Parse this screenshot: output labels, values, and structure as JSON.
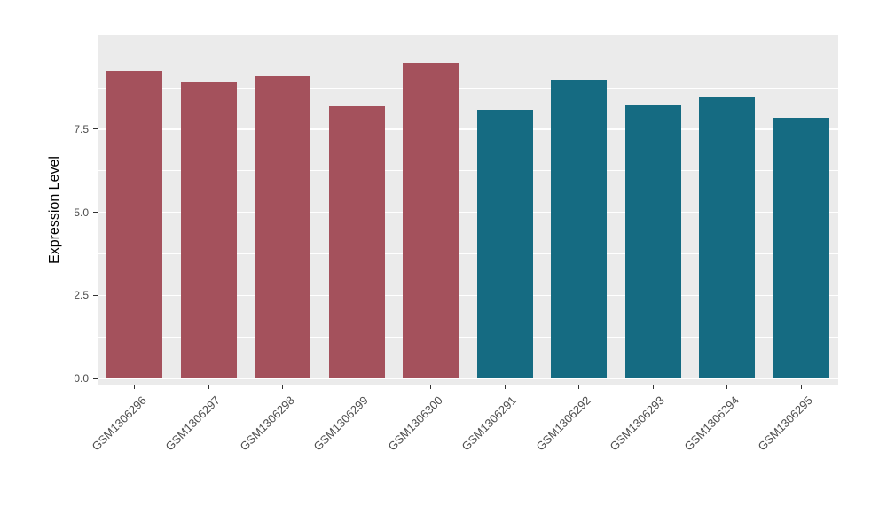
{
  "chart_data": {
    "type": "bar",
    "title": "",
    "xlabel": "",
    "ylabel": "Expression Level",
    "categories": [
      "GSM1306296",
      "GSM1306297",
      "GSM1306298",
      "GSM1306299",
      "GSM1306300",
      "GSM1306291",
      "GSM1306292",
      "GSM1306293",
      "GSM1306294",
      "GSM1306295"
    ],
    "values": [
      9.25,
      8.95,
      9.1,
      8.2,
      9.5,
      8.1,
      9.0,
      8.25,
      8.45,
      7.85
    ],
    "bar_groups": [
      0,
      0,
      0,
      0,
      0,
      1,
      1,
      1,
      1,
      1
    ],
    "group_colors": [
      "#A4515C",
      "#156B82"
    ],
    "ylim": [
      0,
      10.33
    ],
    "yticks": [
      0,
      2.5,
      5,
      7.5
    ],
    "ytick_labels": [
      "0.0",
      "2.5",
      "5.0",
      "7.5"
    ],
    "minor_ticks": [
      1.25,
      3.75,
      6.25,
      8.75
    ],
    "grid": true,
    "legend_position": "none",
    "panel_bg": "#EBEBEB",
    "grid_color": "#FFFFFF"
  }
}
